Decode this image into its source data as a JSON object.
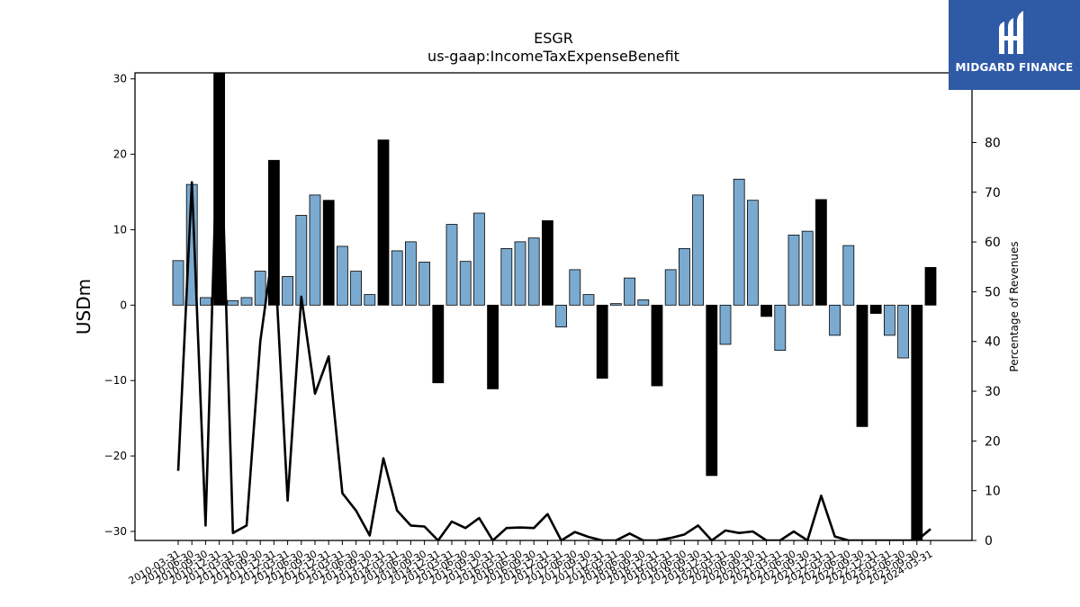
{
  "chart_data": {
    "type": "bar",
    "title": "ESGR",
    "subtitle": "us-gaap:IncomeTaxExpenseBenefit",
    "ylabel": "USDm",
    "ylabel_right": "Percentage of Revenues",
    "ylim": [
      -31.2,
      30.8
    ],
    "ylim_right": [
      0,
      94
    ],
    "yticks": [
      -30,
      -20,
      -10,
      0,
      10,
      20,
      30
    ],
    "yticks_right": [
      0,
      10,
      20,
      30,
      40,
      50,
      60,
      70,
      80
    ],
    "colors": {
      "positive": "#7aaad0",
      "negative": "#000000",
      "line": "#000000"
    },
    "categories": [
      "2010-03-31",
      "2010-06-30",
      "2010-09-30",
      "2010-12-31",
      "2011-03-31",
      "2011-06-30",
      "2011-09-30",
      "2011-12-31",
      "2012-03-31",
      "2012-06-30",
      "2012-09-30",
      "2012-12-31",
      "2013-03-31",
      "2013-06-30",
      "2013-09-30",
      "2013-12-31",
      "2014-03-31",
      "2014-06-30",
      "2014-09-30",
      "2014-12-31",
      "2015-03-31",
      "2015-06-30",
      "2015-09-30",
      "2015-12-31",
      "2016-03-31",
      "2016-06-30",
      "2016-09-30",
      "2016-12-31",
      "2017-03-31",
      "2017-06-30",
      "2017-09-30",
      "2017-12-31",
      "2018-03-31",
      "2018-06-30",
      "2018-09-30",
      "2018-12-31",
      "2019-03-31",
      "2019-06-30",
      "2019-09-30",
      "2019-12-31",
      "2020-03-31",
      "2020-06-30",
      "2020-09-30",
      "2020-12-31",
      "2021-03-31",
      "2021-06-30",
      "2021-09-30",
      "2021-12-31",
      "2022-03-31",
      "2022-06-30",
      "2022-09-30",
      "2022-12-31",
      "2023-03-31",
      "2023-06-30",
      "2023-09-30",
      "2024-03-31"
    ],
    "xtick_labels": [
      "2010-03-31",
      "2010-06-30",
      "2010-09-30",
      "2010-12-31",
      "2011-03-31",
      "2011-06-30",
      "2011-09-30",
      "2011-12-31",
      "2012-03-31",
      "2012-06-30",
      "2012-09-30",
      "2012-12-31",
      "2013-03-31",
      "2013-06-30",
      "2013-09-30",
      "2013-12-31",
      "2014-03-31",
      "2014-06-30",
      "2014-09-30",
      "2014-12-31",
      "2015-03-31",
      "2015-06-30",
      "2015-09-30",
      "2015-12-31",
      "2016-03-31",
      "2016-06-30",
      "2016-09-30",
      "2016-12-31",
      "2017-03-31",
      "2017-06-30",
      "2017-09-30",
      "2017-12-31",
      "2018-03-31",
      "2018-06-30",
      "2018-09-30",
      "2018-12-31",
      "2019-03-31",
      "2019-06-30",
      "2019-09-30",
      "2019-12-31",
      "2020-03-31",
      "2020-06-30",
      "2020-09-30",
      "2020-12-31",
      "2021-03-31",
      "2021-06-30",
      "2021-09-30",
      "2021-12-31",
      "2022-03-31",
      "2022-06-30",
      "2022-09-30",
      "2022-12-31",
      "2023-03-31",
      "2023-06-30",
      "2023-09-30",
      "2024-03-31"
    ],
    "series": [
      {
        "type": "bar",
        "axis": "left",
        "values": [
          5.9,
          16.0,
          1.0,
          32.0,
          0.6,
          1.0,
          4.5,
          19.2,
          3.8,
          11.9,
          14.6,
          13.9,
          7.8,
          4.5,
          1.4,
          21.9,
          7.2,
          8.4,
          5.7,
          -10.3,
          10.7,
          5.8,
          12.2,
          -11.1,
          7.5,
          8.4,
          8.9,
          11.2,
          -2.9,
          4.7,
          1.4,
          -9.7,
          0.2,
          3.6,
          0.7,
          -10.7,
          4.7,
          7.5,
          14.6,
          -22.6,
          -5.2,
          16.7,
          13.9,
          -1.5,
          -6.0,
          9.3,
          9.8,
          14.0,
          -4.0,
          7.9,
          -16.1,
          -1.1,
          -4.0,
          -7.0,
          -32.0,
          5.0
        ]
      },
      {
        "type": "line",
        "axis": "right",
        "values": [
          14,
          72,
          3,
          94,
          1.5,
          3,
          40,
          60,
          8,
          49,
          29.5,
          37,
          9.5,
          6,
          1,
          16.5,
          6,
          3,
          2.8,
          0,
          3.8,
          2.5,
          4.5,
          0,
          2.5,
          2.6,
          2.5,
          5.3,
          0,
          1.7,
          0.7,
          0,
          0,
          1.4,
          0,
          0,
          0.5,
          1.2,
          3,
          0,
          2,
          1.5,
          1.8,
          0,
          0,
          1.8,
          0,
          9,
          0.8,
          0,
          0,
          0,
          0,
          0,
          0,
          2.3
        ]
      }
    ]
  },
  "logo": {
    "text": "MIDGARD FINANCE",
    "color": "#2e5aa6"
  }
}
